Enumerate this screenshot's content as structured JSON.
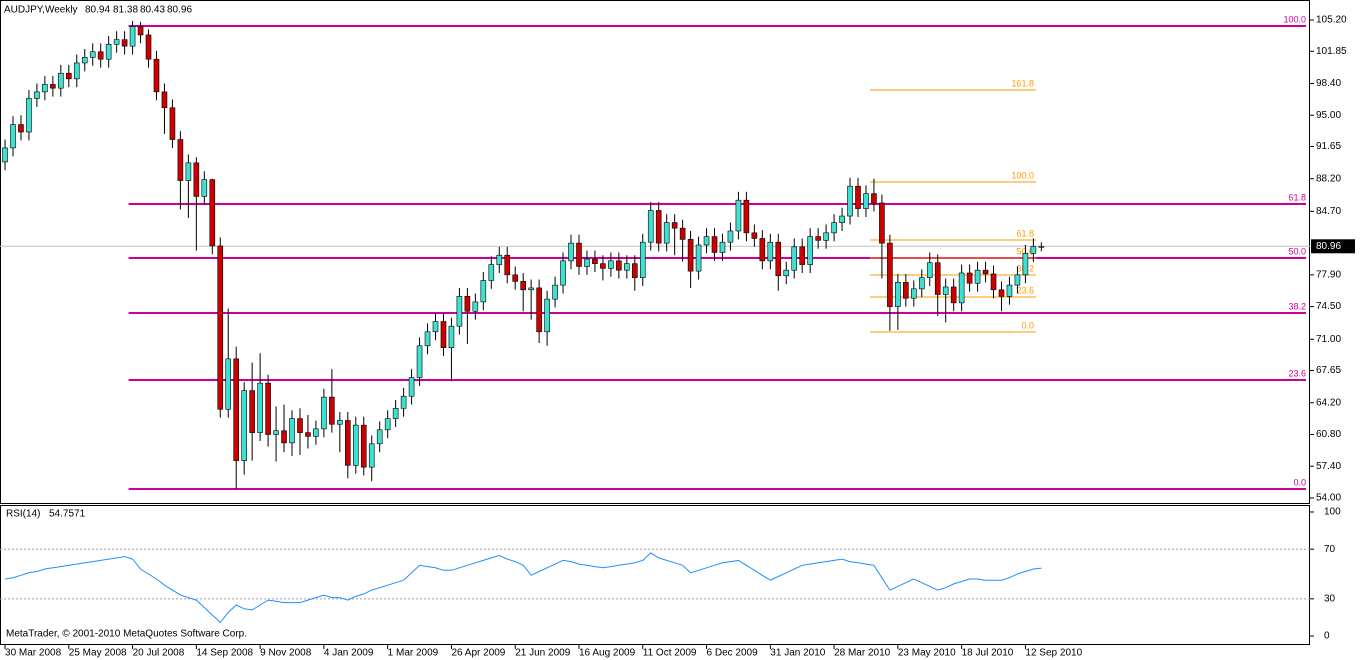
{
  "chart_data": [
    {
      "type": "candlestick",
      "title": "AUDJPY,Weekly",
      "open": [
        90.0,
        91.5,
        94.0,
        93.2,
        96.8,
        97.5,
        98.3,
        97.9,
        99.5,
        98.9,
        100.6,
        101.2,
        101.8,
        101.0,
        102.6,
        103.1,
        102.4,
        104.5,
        103.6,
        101.0,
        97.5,
        95.8,
        92.4,
        88.0,
        89.9,
        86.3,
        88.1,
        81.0,
        63.5,
        68.9,
        58.0,
        65.5,
        61.0,
        66.3,
        60.8,
        61.2,
        59.9,
        62.5,
        61.0,
        60.6,
        61.4,
        64.8,
        61.9,
        62.3,
        57.5,
        61.8,
        57.3,
        59.8,
        61.3,
        62.5,
        63.6,
        64.9,
        66.9,
        70.3,
        71.8,
        72.9,
        70.1,
        72.4,
        75.6,
        74.0,
        75.0,
        77.3,
        79.0,
        80.0,
        77.9,
        77.2,
        76.3,
        76.5,
        71.8,
        75.3,
        76.8,
        79.4,
        81.3,
        78.8,
        79.6,
        79.1,
        78.6,
        79.4,
        78.4,
        79.1,
        77.6,
        81.4,
        84.8,
        81.3,
        83.5,
        82.9,
        81.7,
        78.3,
        81.1,
        82.0,
        80.3,
        81.4,
        82.6,
        85.9,
        82.4,
        81.8,
        79.4,
        81.4,
        77.8,
        78.4,
        80.9,
        79.0,
        82.0,
        81.6,
        82.4,
        83.5,
        84.2,
        87.4,
        85.0,
        86.6,
        85.6,
        81.3,
        74.5,
        77.1,
        75.4,
        76.4,
        77.6,
        79.2,
        75.8,
        76.6,
        74.9,
        78.1,
        77.0,
        78.4,
        78.0,
        76.3,
        75.6,
        76.8,
        77.9,
        80.2,
        80.94
      ],
      "high": [
        92.4,
        94.9,
        95.0,
        97.7,
        98.4,
        99.2,
        99.2,
        100.4,
        100.4,
        101.5,
        102.1,
        102.7,
        102.7,
        103.5,
        104.0,
        104.0,
        105.1,
        105.0,
        104.2,
        101.9,
        98.4,
        96.7,
        93.3,
        90.8,
        90.5,
        89.0,
        88.2,
        81.9,
        74.3,
        70.2,
        66.4,
        68.5,
        69.5,
        67.2,
        63.8,
        64.0,
        63.4,
        63.6,
        62.9,
        62.3,
        65.7,
        67.8,
        63.2,
        63.2,
        62.7,
        62.7,
        60.7,
        62.2,
        63.4,
        64.5,
        65.8,
        67.8,
        71.2,
        72.7,
        73.8,
        73.8,
        73.3,
        76.5,
        76.5,
        75.9,
        78.2,
        79.9,
        80.9,
        80.9,
        78.8,
        78.1,
        77.4,
        77.4,
        76.2,
        77.7,
        80.3,
        82.2,
        82.2,
        80.5,
        80.5,
        80.0,
        80.3,
        80.3,
        80.0,
        80.0,
        82.3,
        85.7,
        85.7,
        84.4,
        84.4,
        83.8,
        82.6,
        82.0,
        82.9,
        82.9,
        82.3,
        83.5,
        86.8,
        86.8,
        83.3,
        82.7,
        82.3,
        82.3,
        79.3,
        81.8,
        81.8,
        82.9,
        82.9,
        83.3,
        84.4,
        85.1,
        88.3,
        88.3,
        87.5,
        88.2,
        86.5,
        82.2,
        78.0,
        78.0,
        77.3,
        78.5,
        80.3,
        80.1,
        77.5,
        77.5,
        79.0,
        79.0,
        79.3,
        79.3,
        78.9,
        77.2,
        77.7,
        78.8,
        81.1,
        81.8,
        81.38
      ],
      "low": [
        89.1,
        90.6,
        92.3,
        92.3,
        95.9,
        96.6,
        97.0,
        97.0,
        98.0,
        98.0,
        99.7,
        100.3,
        100.1,
        100.1,
        101.7,
        101.5,
        101.5,
        102.7,
        100.1,
        96.6,
        93.0,
        91.5,
        84.9,
        84.0,
        80.5,
        85.4,
        80.1,
        62.6,
        62.6,
        55.0,
        56.5,
        58.0,
        60.1,
        59.5,
        57.9,
        58.9,
        58.5,
        58.6,
        59.3,
        59.7,
        60.5,
        61.0,
        58.9,
        56.1,
        56.6,
        56.4,
        55.8,
        58.9,
        60.4,
        61.6,
        62.7,
        64.0,
        66.0,
        69.4,
        70.9,
        69.2,
        66.5,
        71.5,
        70.5,
        73.1,
        74.1,
        76.4,
        78.1,
        77.0,
        76.3,
        74.0,
        73.1,
        70.6,
        70.3,
        74.4,
        75.9,
        78.5,
        77.9,
        77.9,
        78.2,
        77.3,
        77.7,
        77.5,
        77.5,
        76.2,
        76.7,
        80.5,
        80.4,
        80.4,
        80.0,
        79.3,
        76.5,
        77.4,
        80.2,
        79.4,
        79.4,
        80.5,
        81.7,
        81.5,
        80.9,
        78.5,
        78.5,
        76.2,
        76.9,
        77.5,
        78.1,
        78.1,
        80.7,
        80.7,
        81.5,
        82.6,
        83.3,
        84.1,
        84.1,
        84.7,
        77.5,
        71.9,
        72.0,
        74.5,
        74.5,
        75.5,
        76.7,
        73.5,
        72.8,
        74.0,
        74.0,
        76.1,
        76.1,
        77.1,
        75.4,
        74.0,
        74.7,
        75.9,
        77.0,
        79.3,
        80.43
      ],
      "close": [
        91.5,
        94.0,
        93.2,
        96.8,
        97.5,
        98.3,
        97.9,
        99.5,
        98.9,
        100.6,
        101.2,
        101.8,
        101.0,
        102.6,
        103.1,
        102.4,
        104.5,
        103.6,
        101.0,
        97.5,
        95.8,
        92.4,
        88.0,
        89.9,
        86.3,
        88.1,
        81.0,
        63.5,
        68.9,
        58.0,
        65.5,
        61.0,
        66.3,
        60.8,
        61.2,
        59.9,
        62.5,
        61.0,
        60.6,
        61.4,
        64.8,
        61.9,
        62.3,
        57.5,
        61.8,
        57.3,
        59.8,
        61.3,
        62.5,
        63.6,
        64.9,
        66.9,
        70.3,
        71.8,
        72.9,
        70.1,
        72.4,
        75.6,
        74.0,
        75.0,
        77.3,
        79.0,
        80.0,
        77.9,
        77.2,
        76.3,
        76.5,
        71.8,
        75.3,
        76.8,
        79.4,
        81.3,
        78.8,
        79.6,
        79.1,
        78.6,
        79.4,
        78.4,
        79.1,
        77.6,
        81.4,
        84.8,
        81.3,
        83.5,
        82.9,
        81.7,
        78.3,
        81.1,
        82.0,
        80.3,
        81.4,
        82.6,
        85.9,
        82.4,
        81.8,
        79.4,
        81.4,
        77.8,
        78.4,
        80.9,
        79.0,
        82.0,
        81.6,
        82.4,
        83.5,
        84.2,
        87.4,
        85.0,
        86.6,
        85.6,
        81.3,
        74.5,
        77.1,
        75.4,
        76.4,
        77.6,
        79.2,
        75.8,
        76.6,
        74.9,
        78.1,
        77.0,
        78.4,
        78.0,
        76.3,
        75.6,
        76.8,
        77.9,
        80.2,
        80.94,
        80.96
      ],
      "up_color": "#40e0d0",
      "down_color": "#cc0000",
      "last_price_color": "#c0c0c0",
      "ylim": [
        53.46,
        107.13
      ],
      "yticks": [
        {
          "value": 105.2,
          "label": "105.20"
        },
        101.85,
        {
          "value": 98.4,
          "label": "98.40"
        },
        {
          "value": 95,
          "label": "95.00"
        },
        91.65,
        {
          "value": 88.2,
          "label": "88.20"
        },
        {
          "value": 84.7,
          "label": "84.70"
        },
        {
          "value": 77.9,
          "label": "77.90"
        },
        {
          "value": 74.5,
          "label": "74.50"
        },
        {
          "value": 71,
          "label": "71.00"
        },
        67.65,
        {
          "value": 64.2,
          "label": "64.20"
        },
        {
          "value": 60.8,
          "label": "60.80"
        },
        {
          "value": 57.4,
          "label": "57.40"
        },
        {
          "value": 54,
          "label": "54.00"
        }
      ],
      "xlim": [
        -0.63,
        163.7
      ],
      "xticks": [
        {
          "value": 0,
          "label": "30 Mar 2008"
        },
        {
          "value": 8,
          "label": "25 May 2008"
        },
        {
          "value": 16,
          "label": "20 Jul 2008"
        },
        {
          "value": 24,
          "label": "14 Sep 2008"
        },
        {
          "value": 32,
          "label": "9 Nov 2008"
        },
        {
          "value": 40,
          "label": "4 Jan 2009"
        },
        {
          "value": 48,
          "label": "1 Mar 2009"
        },
        {
          "value": 56,
          "label": "26 Apr 2009"
        },
        {
          "value": 64,
          "label": "21 Jun 2009"
        },
        {
          "value": 72,
          "label": "16 Aug 2009"
        },
        {
          "value": 80,
          "label": "11 Oct 2009"
        },
        {
          "value": 88,
          "label": "6 Dec 2009"
        },
        {
          "value": 96,
          "label": "31 Jan 2010"
        },
        {
          "value": 104,
          "label": "28 Mar 2010"
        },
        {
          "value": 112,
          "label": "23 May 2010"
        },
        {
          "value": 120,
          "label": "18 Jul 2010"
        },
        {
          "value": 128,
          "label": "12 Sep 2010"
        }
      ],
      "fibonacci": [
        {
          "color": "#cc0099",
          "levels": [
            {
              "value": 104.56,
              "label": "100.0"
            },
            {
              "value": 85.49,
              "label": "61.8"
            },
            {
              "value": 79.71,
              "label": "50.0"
            },
            {
              "value": 73.82,
              "label": "38.2"
            },
            {
              "value": 66.64,
              "label": "23.6"
            },
            {
              "value": 54.96,
              "label": "0.0"
            }
          ]
        },
        {
          "color": "#ff9900",
          "levels": [
            {
              "value": 97.7,
              "label": "161.8"
            },
            {
              "value": 87.85,
              "label": "100.0"
            },
            {
              "value": 81.64,
              "label": "61.8"
            },
            {
              "value": 79.71,
              "label": "50.0"
            },
            {
              "value": 77.89,
              "label": "38.2"
            },
            {
              "value": 75.53,
              "label": "23.6"
            },
            {
              "value": 71.78,
              "label": "0.0"
            }
          ]
        }
      ]
    },
    {
      "type": "line",
      "title": "RSI(14)",
      "color": "#1e90ff",
      "level_color": "#a0a0a0",
      "values": [
        46,
        47,
        49,
        51,
        52,
        54,
        55,
        56,
        57,
        58,
        59,
        60,
        61,
        62,
        63,
        64,
        62,
        54,
        50,
        46,
        41,
        37,
        33,
        31,
        29,
        23,
        17,
        11,
        19,
        25,
        22,
        21,
        25,
        29,
        28,
        27,
        27,
        27,
        29,
        31,
        33,
        31,
        31,
        29,
        32,
        34,
        37,
        39,
        41,
        43,
        45,
        51,
        57,
        56,
        55,
        53,
        53,
        55,
        57,
        59,
        61,
        63,
        65,
        62,
        60,
        57,
        49,
        52,
        55,
        58,
        61,
        60,
        58,
        57,
        56,
        55,
        56,
        57,
        58,
        59,
        61,
        67,
        63,
        61,
        59,
        57,
        51,
        53,
        55,
        57,
        59,
        60,
        61,
        57,
        53,
        49,
        45,
        48,
        51,
        54,
        57,
        58,
        59,
        60,
        61,
        62,
        60,
        59,
        58,
        57,
        47,
        37,
        40,
        43,
        46,
        43,
        40,
        37,
        39,
        42,
        44,
        46,
        46,
        45,
        45,
        45,
        47,
        50,
        52,
        54,
        54.7571
      ],
      "ylim": [
        -7.2,
        104.8
      ],
      "yticks": [
        100,
        70,
        30,
        0
      ],
      "levels": [
        70,
        30
      ]
    }
  ],
  "footer": "MetaTrader, © 2001-2010 MetaQuotes Software Corp."
}
